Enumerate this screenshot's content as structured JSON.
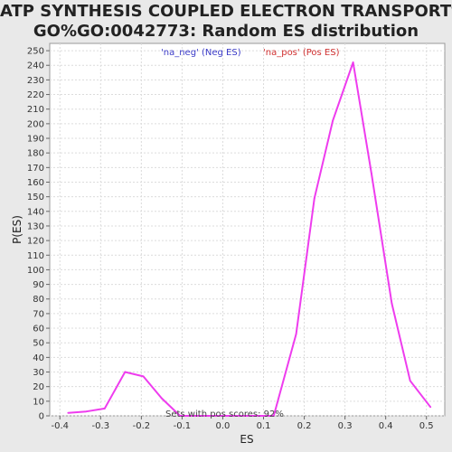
{
  "chart_data": {
    "type": "line",
    "title_line1": "ATP SYNTHESIS COUPLED ELECTRON TRANSPORT%",
    "title_line2": "GO%GO:0042773: Random ES distribution",
    "xlabel": "ES",
    "ylabel": "P(ES)",
    "xlim": [
      -0.425,
      0.545
    ],
    "ylim": [
      0,
      255
    ],
    "x_ticks": [
      "-0.4",
      "-0.3",
      "-0.2",
      "-0.1",
      "0.0",
      "0.1",
      "0.2",
      "0.3",
      "0.4",
      "0.5"
    ],
    "x_tick_values": [
      -0.4,
      -0.3,
      -0.2,
      -0.1,
      0.0,
      0.1,
      0.2,
      0.3,
      0.4,
      0.5
    ],
    "y_ticks": [
      0,
      10,
      20,
      30,
      40,
      50,
      60,
      70,
      80,
      90,
      100,
      110,
      120,
      130,
      140,
      150,
      160,
      170,
      180,
      190,
      200,
      210,
      220,
      230,
      240,
      250
    ],
    "grid": true,
    "legend": [
      {
        "label": "'na_neg' (Neg ES)",
        "color": "#3b3bc8"
      },
      {
        "label": "'na_pos' (Pos ES)",
        "color": "#d03030"
      }
    ],
    "annotation": "Sets with pos scores: 92%",
    "series": [
      {
        "color": "#ee3cee",
        "x": [
          -0.38,
          -0.335,
          -0.29,
          -0.24,
          -0.195,
          -0.15,
          -0.105,
          -0.06,
          -0.015,
          0.035,
          0.08,
          0.125,
          0.18,
          0.225,
          0.27,
          0.32,
          0.365,
          0.415,
          0.46,
          0.51
        ],
        "y": [
          2,
          3,
          5,
          30,
          27,
          12,
          0,
          0,
          0,
          0,
          0,
          0,
          56,
          149,
          202,
          242,
          166,
          77,
          24,
          6
        ]
      }
    ]
  }
}
